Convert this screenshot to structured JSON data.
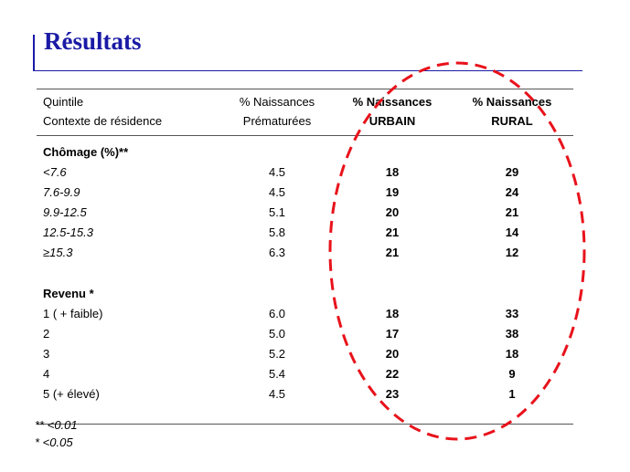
{
  "title": "Résultats",
  "header": {
    "col1_line1": "Quintile",
    "col1_line2": "Contexte de résidence",
    "col2_line1": "% Naissances",
    "col2_line2": "Prématurées",
    "col3_line1": "% Naissances",
    "col3_line2": "URBAIN",
    "col4_line1": "% Naissances",
    "col4_line2": "RURAL"
  },
  "sections": [
    {
      "heading": "Chômage (%)**",
      "rows": [
        {
          "label": "<7.6",
          "premature": "4.5",
          "urbain": "18",
          "rural": "29"
        },
        {
          "label": "7.6-9.9",
          "premature": "4.5",
          "urbain": "19",
          "rural": "24"
        },
        {
          "label": "9.9-12.5",
          "premature": "5.1",
          "urbain": "20",
          "rural": "21"
        },
        {
          "label": "12.5-15.3",
          "premature": "5.8",
          "urbain": "21",
          "rural": "14"
        },
        {
          "label": "≥15.3",
          "premature": "6.3",
          "urbain": "21",
          "rural": "12"
        }
      ]
    },
    {
      "heading": "Revenu *",
      "rows": [
        {
          "label": "1 ( + faible)",
          "premature": "6.0",
          "urbain": "18",
          "rural": "33"
        },
        {
          "label": "2",
          "premature": "5.0",
          "urbain": "17",
          "rural": "38"
        },
        {
          "label": "3",
          "premature": "5.2",
          "urbain": "20",
          "rural": "18"
        },
        {
          "label": "4",
          "premature": "5.4",
          "urbain": "22",
          "rural": "9"
        },
        {
          "label": "5 (+ élevé)",
          "premature": "4.5",
          "urbain": "23",
          "rural": "1"
        }
      ]
    }
  ],
  "footnotes": [
    "** <0.01",
    "*  <0.05"
  ],
  "colors": {
    "title": "#1a1aa6",
    "highlight_ellipse": "#e8121b"
  }
}
